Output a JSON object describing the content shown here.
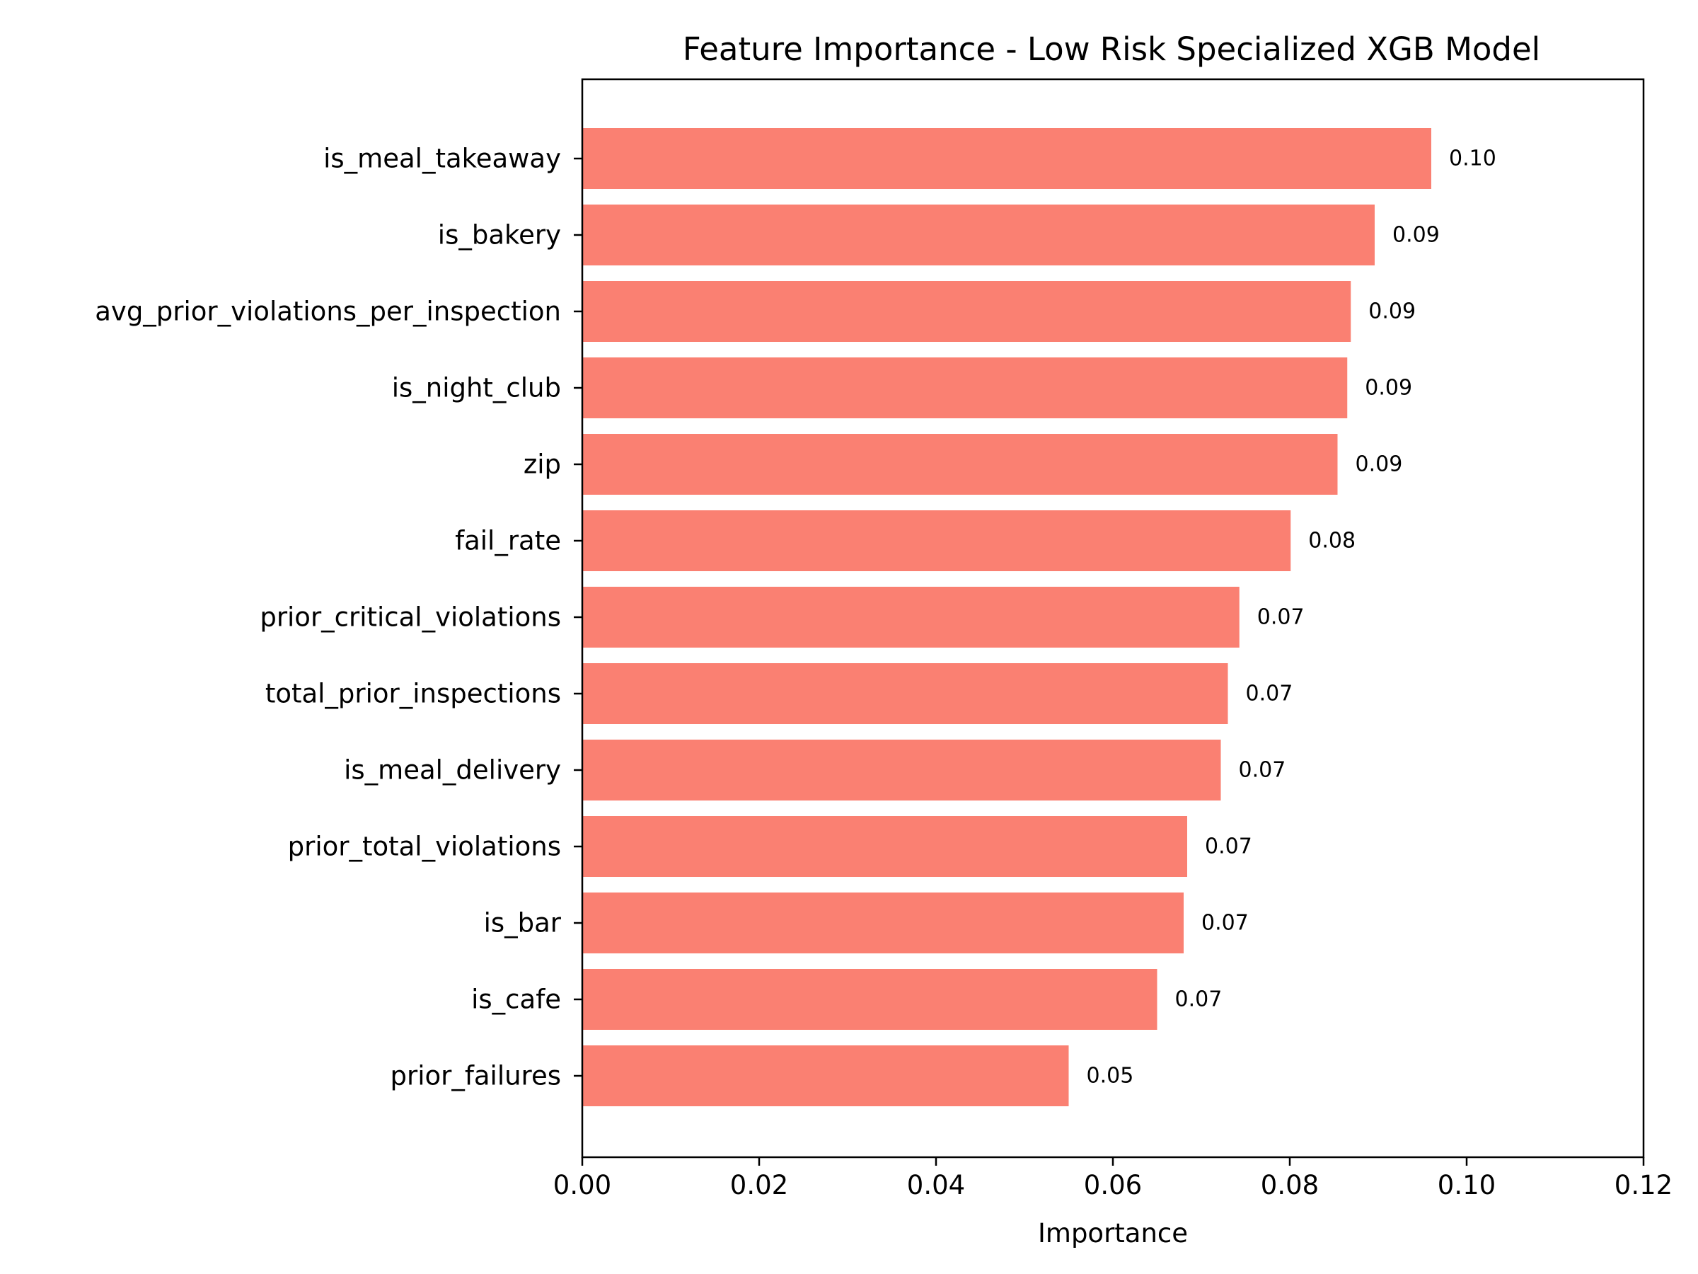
{
  "chart_data": {
    "type": "bar",
    "orientation": "horizontal",
    "title": "Feature Importance - Low Risk Specialized XGB Model",
    "xlabel": "Importance",
    "ylabel": "",
    "xlim": [
      0,
      0.12
    ],
    "xticks": [
      0.0,
      0.02,
      0.04,
      0.06,
      0.08,
      0.1,
      0.12
    ],
    "xtick_labels": [
      "0.00",
      "0.02",
      "0.04",
      "0.06",
      "0.08",
      "0.10",
      "0.12"
    ],
    "grid": false,
    "bar_color": "#fa8072",
    "categories": [
      "is_meal_takeaway",
      "is_bakery",
      "avg_prior_violations_per_inspection",
      "is_night_club",
      "zip",
      "fail_rate",
      "prior_critical_violations",
      "total_prior_inspections",
      "is_meal_delivery",
      "prior_total_violations",
      "is_bar",
      "is_cafe",
      "prior_failures"
    ],
    "values": [
      0.096,
      0.0896,
      0.0869,
      0.0865,
      0.0854,
      0.0801,
      0.0743,
      0.073,
      0.0722,
      0.0684,
      0.068,
      0.065,
      0.055
    ],
    "data_labels": [
      "0.10",
      "0.09",
      "0.09",
      "0.09",
      "0.09",
      "0.08",
      "0.07",
      "0.07",
      "0.07",
      "0.07",
      "0.07",
      "0.07",
      "0.05"
    ]
  }
}
